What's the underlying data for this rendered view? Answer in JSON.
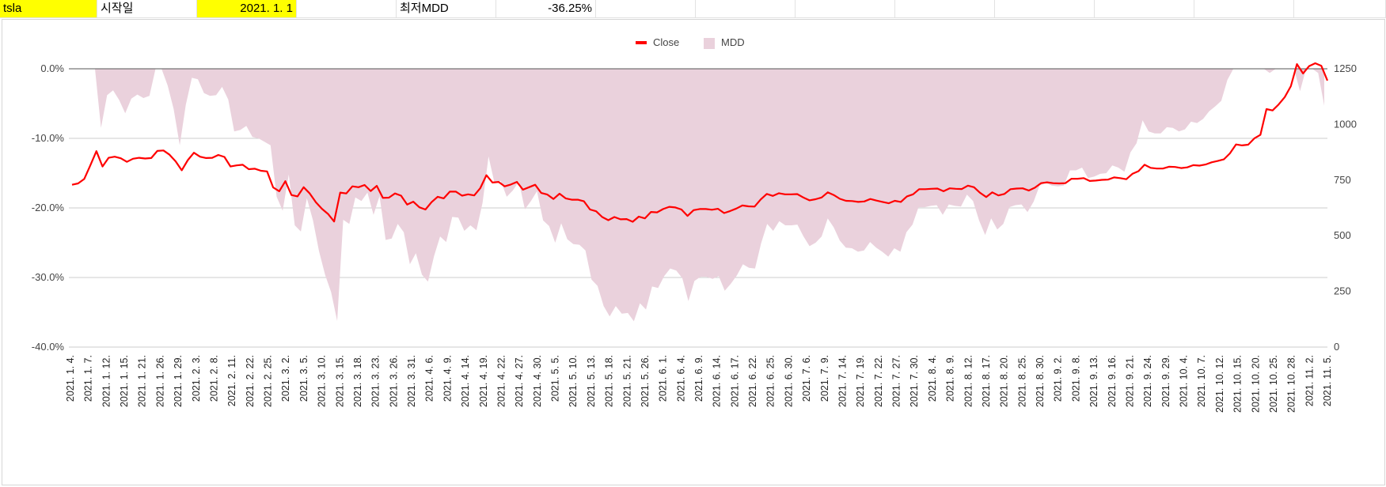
{
  "sheet": {
    "ticker": "tsla",
    "start_label": "시작일",
    "start_date": "2021. 1. 1",
    "mdd_label": "최저MDD",
    "mdd_value": "-36.25%"
  },
  "colors": {
    "close_line": "#ff0000",
    "mdd_area": "#ead1dc",
    "highlight": "#ffff00",
    "grid": "#cccccc"
  },
  "chart_data": {
    "type": "line+area",
    "legend": {
      "position": "top",
      "entries": [
        "Close",
        "MDD"
      ]
    },
    "series": [
      {
        "name": "Close",
        "type": "line",
        "axis": "right",
        "color": "#ff0000",
        "values": [
          729,
          735,
          755,
          816,
          880,
          811,
          850,
          855,
          848,
          832,
          846,
          850,
          847,
          849,
          881,
          883,
          864,
          834,
          794,
          840,
          873,
          855,
          849,
          850,
          863,
          854,
          811,
          816,
          819,
          799,
          801,
          792,
          789,
          717,
          700,
          745,
          683,
          677,
          718,
          690,
          651,
          621,
          598,
          564,
          694,
          690,
          722,
          718,
          728,
          701,
          724,
          670,
          671,
          690,
          680,
          640,
          653,
          628,
          618,
          651,
          675,
          668,
          698,
          698,
          680,
          686,
          681,
          714,
          772,
          739,
          742,
          722,
          730,
          742,
          707,
          718,
          729,
          692,
          685,
          665,
          689,
          668,
          662,
          662,
          655,
          618,
          610,
          584,
          570,
          584,
          574,
          575,
          563,
          586,
          578,
          607,
          605,
          620,
          630,
          627,
          618,
          589,
          615,
          620,
          620,
          617,
          621,
          602,
          611,
          622,
          636,
          632,
          631,
          663,
          688,
          679,
          691,
          686,
          686,
          687,
          672,
          659,
          664,
          672,
          695,
          683,
          666,
          657,
          656,
          652,
          654,
          665,
          658,
          652,
          646,
          657,
          652,
          677,
          686,
          709,
          709,
          711,
          712,
          700,
          713,
          711,
          710,
          725,
          718,
          693,
          674,
          695,
          681,
          688,
          709,
          712,
          713,
          703,
          716,
          736,
          740,
          736,
          735,
          736,
          756,
          756,
          759,
          746,
          748,
          751,
          752,
          762,
          759,
          754,
          778,
          790,
          819,
          805,
          802,
          802,
          810,
          809,
          804,
          807,
          817,
          815,
          820,
          830,
          836,
          843,
          870,
          910,
          906,
          909,
          937,
          953,
          1069,
          1063,
          1090,
          1123,
          1172,
          1271,
          1229,
          1262,
          1275,
          1263,
          1197
        ],
        "ylim": [
          0,
          1250
        ]
      },
      {
        "name": "MDD",
        "type": "area",
        "axis": "left",
        "color": "#ead1dc",
        "values": [
          0,
          0,
          0,
          0,
          -8.5,
          -3.8,
          -3.1,
          -4.5,
          -6.4,
          -4.3,
          -3.7,
          -4.2,
          -3.9,
          0,
          0,
          -2.4,
          -5.8,
          -11,
          -5.2,
          -1.3,
          -1.5,
          -3.5,
          -3.9,
          -3.8,
          -2.6,
          -4.4,
          -9.0,
          -8.8,
          -8.2,
          -9.8,
          -10,
          -10.5,
          -11,
          -18.4,
          -20.4,
          -15.2,
          -22.5,
          -23.4,
          -18.6,
          -21.8,
          -26.2,
          -29.6,
          -32.1,
          -36.25,
          -21.7,
          -22.3,
          -18.5,
          -19.0,
          -17.8,
          -21.0,
          -18.3,
          -24.6,
          -24.4,
          -22.3,
          -23.5,
          -28.1,
          -26.5,
          -29.6,
          -30.6,
          -26.9,
          -24.1,
          -24.9,
          -21.3,
          -21.4,
          -23.3,
          -22.5,
          -23.2,
          -19.3,
          -12.6,
          -16.5,
          -16.1,
          -18.4,
          -17.5,
          -16.2,
          -20.2,
          -19.0,
          -17.6,
          -21.8,
          -22.6,
          -25,
          -22.2,
          -24.5,
          -25.2,
          -25.3,
          -26.1,
          -30.3,
          -31.2,
          -34.1,
          -35.6,
          -34.1,
          -35.2,
          -35.1,
          -36.3,
          -33.7,
          -34.6,
          -31.3,
          -31.5,
          -29.8,
          -28.7,
          -29,
          -30.1,
          -33.4,
          -30.5,
          -29.9,
          -29.9,
          -30.2,
          -29.8,
          -31.9,
          -30.9,
          -29.7,
          -28.1,
          -28.6,
          -28.7,
          -25.1,
          -22.3,
          -23.3,
          -21.9,
          -22.5,
          -22.5,
          -22.4,
          -24.1,
          -25.5,
          -25,
          -24.1,
          -21.5,
          -22.8,
          -24.7,
          -25.7,
          -25.8,
          -26.3,
          -26.1,
          -24.9,
          -25.7,
          -26.3,
          -27,
          -25.8,
          -26.3,
          -23.5,
          -22.4,
          -19.9,
          -19.9,
          -19.7,
          -19.6,
          -21,
          -19.5,
          -19.7,
          -19.8,
          -18.1,
          -19,
          -21.8,
          -23.9,
          -21.5,
          -23.1,
          -22.3,
          -19.9,
          -19.6,
          -19.5,
          -20.6,
          -19.1,
          -16.8,
          -16.4,
          -16.8,
          -16.9,
          -16.8,
          -14.6,
          -14.6,
          -14.2,
          -15.7,
          -15.5,
          -15.1,
          -15,
          -13.9,
          -14.2,
          -14.8,
          -12,
          -10.7,
          -7.4,
          -9,
          -9.3,
          -9.3,
          -8.4,
          -8.5,
          -9,
          -8.7,
          -7.6,
          -7.8,
          -7.2,
          -6.1,
          -5.4,
          -4.6,
          -1.6,
          0,
          0,
          0,
          0,
          0,
          0,
          -0.6,
          0,
          0,
          0,
          0,
          -3.2,
          0,
          0,
          -0.6,
          -5.3
        ],
        "ylim": [
          -40,
          0
        ]
      }
    ],
    "x_labels": [
      "2021. 1. 4.",
      "2021. 1. 7.",
      "2021. 1. 12.",
      "2021. 1. 15.",
      "2021. 1. 21.",
      "2021. 1. 26.",
      "2021. 1. 29.",
      "2021. 2. 3.",
      "2021. 2. 8.",
      "2021. 2. 11.",
      "2021. 2. 22.",
      "2021. 2. 25.",
      "2021. 3. 2.",
      "2021. 3. 5.",
      "2021. 3. 10.",
      "2021. 3. 15.",
      "2021. 3. 18.",
      "2021. 3. 23.",
      "2021. 3. 26.",
      "2021. 3. 31.",
      "2021. 4. 6.",
      "2021. 4. 9.",
      "2021. 4. 14.",
      "2021. 4. 19.",
      "2021. 4. 22.",
      "2021. 4. 27.",
      "2021. 4. 30.",
      "2021. 5. 5.",
      "2021. 5. 10.",
      "2021. 5. 13.",
      "2021. 5. 18.",
      "2021. 5. 21.",
      "2021. 5. 26.",
      "2021. 6. 1.",
      "2021. 6. 4.",
      "2021. 6. 9.",
      "2021. 6. 14.",
      "2021. 6. 17.",
      "2021. 6. 22.",
      "2021. 6. 25.",
      "2021. 6. 30.",
      "2021. 7. 6.",
      "2021. 7. 9.",
      "2021. 7. 14.",
      "2021. 7. 19.",
      "2021. 7. 22.",
      "2021. 7. 27.",
      "2021. 7. 30.",
      "2021. 8. 4.",
      "2021. 8. 9.",
      "2021. 8. 12.",
      "2021. 8. 17.",
      "2021. 8. 20.",
      "2021. 8. 25.",
      "2021. 8. 30.",
      "2021. 9. 2.",
      "2021. 9. 8.",
      "2021. 9. 13.",
      "2021. 9. 16.",
      "2021. 9. 21.",
      "2021. 9. 24.",
      "2021. 9. 29.",
      "2021. 10. 4.",
      "2021. 10. 7.",
      "2021. 10. 12.",
      "2021. 10. 15.",
      "2021. 10. 20.",
      "2021. 10. 25.",
      "2021. 10. 28.",
      "2021. 11. 2.",
      "2021. 11. 5."
    ],
    "left_axis": {
      "ticks": [
        "0.0%",
        "-10.0%",
        "-20.0%",
        "-30.0%",
        "-40.0%"
      ],
      "range": [
        -40,
        0
      ]
    },
    "right_axis": {
      "ticks": [
        "1250",
        "1000",
        "750",
        "500",
        "250",
        "0"
      ],
      "range": [
        0,
        1250
      ]
    },
    "grid": true
  }
}
